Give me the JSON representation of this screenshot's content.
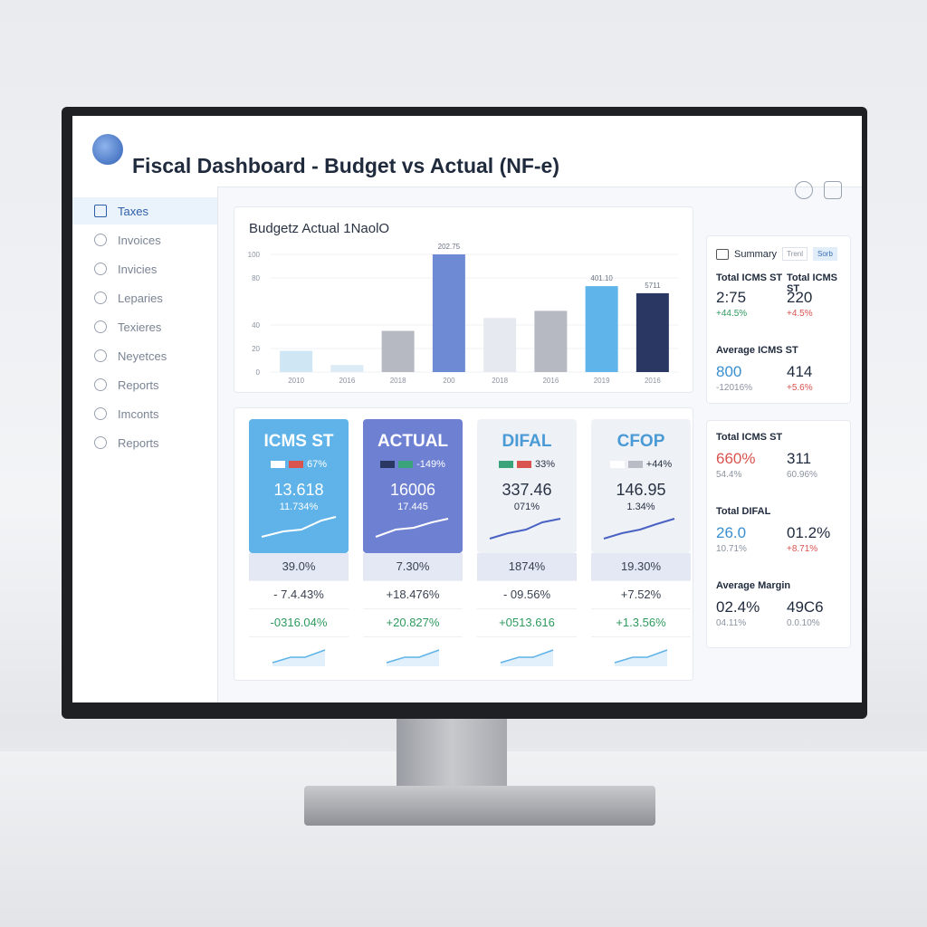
{
  "header": {
    "title": "Fiscal Dashboard - Budget vs Actual (NF-e)"
  },
  "sidebar": [
    "Taxes",
    "Invoices",
    "Invicies",
    "Leparies",
    "Texieres",
    "Neyetces",
    "Reports",
    "Imconts",
    "Reports"
  ],
  "chart": {
    "type": "bar",
    "title": "Budgetz Actual 1NaolO",
    "categories": [
      "2010",
      "2016",
      "2018",
      "200",
      "2018",
      "2016",
      "2019",
      "2016"
    ],
    "values": [
      18,
      6,
      35,
      100,
      46,
      52,
      73,
      67
    ],
    "colors": [
      "#cfe7f5",
      "#dcebf5",
      "#b6b9c2",
      "#6f8ad4",
      "#e6e9ef",
      "#b6b9c2",
      "#5fb4ea",
      "#2b3763"
    ],
    "ylim": [
      0,
      100
    ],
    "yticks": [
      0,
      20,
      40,
      80,
      100
    ],
    "grid": true,
    "annotations": [
      "202.75",
      "401.10",
      "5711"
    ]
  },
  "cards": [
    {
      "title": "ICMS ST",
      "legend": "67%",
      "value": "13.618",
      "sub": "11.734%",
      "rows": [
        "39.0%",
        "- 7.4.43%",
        "-0316.04%"
      ],
      "color": "#5fb3e8"
    },
    {
      "title": "ACTUAL",
      "legend": "-149%",
      "value": "16006",
      "sub": "17.445",
      "rows": [
        "7.30%",
        "+18.476%",
        "+20.827%"
      ],
      "color": "#6e80d2"
    },
    {
      "title": "DIFAL",
      "legend": "33%",
      "value": "337.46",
      "sub": "071%",
      "rows": [
        "1874%",
        "- 09.56%",
        "+0513.616"
      ],
      "color": "#eef1f6"
    },
    {
      "title": "CFOP",
      "legend": "+44%",
      "value": "146.95",
      "sub": "1.34%",
      "rows": [
        "19.30%",
        "+7.52%",
        "+1.3.56%"
      ],
      "color": "#eef1f6"
    }
  ],
  "summary": {
    "title": "Summary",
    "buttons": [
      "Trenl",
      "Sorb"
    ],
    "groups": [
      {
        "items": [
          {
            "label": "Total ICMS ST",
            "value": "2:75",
            "change": "+44.5%"
          },
          {
            "label": "Total ICMS ST",
            "value": "220",
            "change": "+4.5%"
          }
        ]
      },
      {
        "label": "Average ICMS ST",
        "items": [
          {
            "value": "800",
            "change": "-12016%"
          },
          {
            "value": "414",
            "change": "+5.6%"
          }
        ]
      }
    ]
  },
  "totals": {
    "groups": [
      {
        "label": "Total ICMS ST",
        "items": [
          {
            "value": "660%",
            "change": "54.4%"
          },
          {
            "value": "311",
            "change": "60.96%"
          }
        ]
      },
      {
        "label": "Total DIFAL",
        "items": [
          {
            "value": "26.0",
            "change": "10.71%"
          },
          {
            "value": "01.2%",
            "change": "+8.71%"
          }
        ]
      },
      {
        "label": "Average Margin",
        "items": [
          {
            "value": "02.4%",
            "change": "04.11%"
          },
          {
            "value": "49C6",
            "change": "0.0.10%"
          }
        ]
      }
    ]
  }
}
